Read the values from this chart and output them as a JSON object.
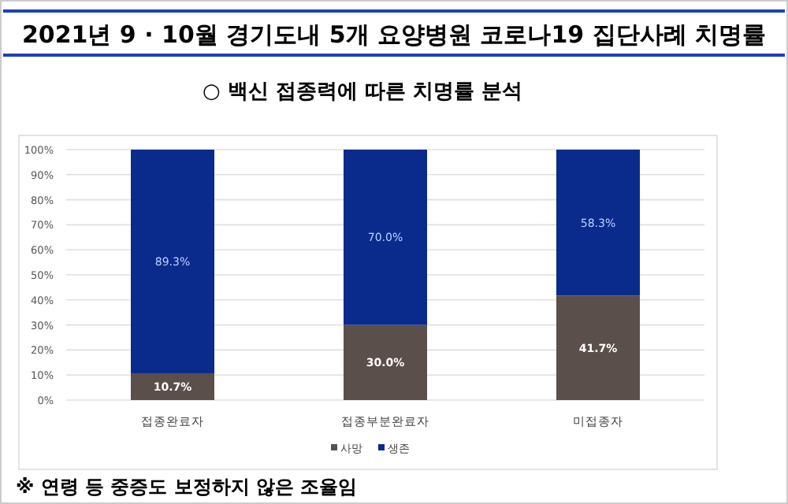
{
  "chart_data": {
    "type": "bar",
    "stacked": true,
    "title": "2021년 9 · 10월 경기도내 5개 요양병원 코로나19 집단사례 치명률",
    "subtitle": "○ 백신 접종력에 따른 치명률 분석",
    "categories": [
      "접종완료자",
      "접종부분완료자",
      "미접종자"
    ],
    "series": [
      {
        "name": "사망",
        "color": "#5b4f4b",
        "values": [
          10.7,
          30.0,
          41.7
        ],
        "value_labels": [
          "10.7%",
          "30.0%",
          "41.7%"
        ]
      },
      {
        "name": "생존",
        "color": "#0a2a8c",
        "values": [
          89.3,
          70.0,
          58.3
        ],
        "value_labels": [
          "89.3%",
          "70.0%",
          "58.3%"
        ]
      }
    ],
    "ylim": [
      0,
      100
    ],
    "yticks": [
      {
        "value": 0,
        "label": "0%"
      },
      {
        "value": 10,
        "label": "10%"
      },
      {
        "value": 20,
        "label": "20%"
      },
      {
        "value": 30,
        "label": "30%"
      },
      {
        "value": 40,
        "label": "40%"
      },
      {
        "value": 50,
        "label": "50%"
      },
      {
        "value": 60,
        "label": "60%"
      },
      {
        "value": 70,
        "label": "70%"
      },
      {
        "value": 80,
        "label": "80%"
      },
      {
        "value": 90,
        "label": "90%"
      },
      {
        "value": 100,
        "label": "100%"
      }
    ],
    "grid": "y",
    "legend": "bottom",
    "annotations": [
      "※ 연령 등 중증도 보정하지 않은 조율임"
    ]
  }
}
